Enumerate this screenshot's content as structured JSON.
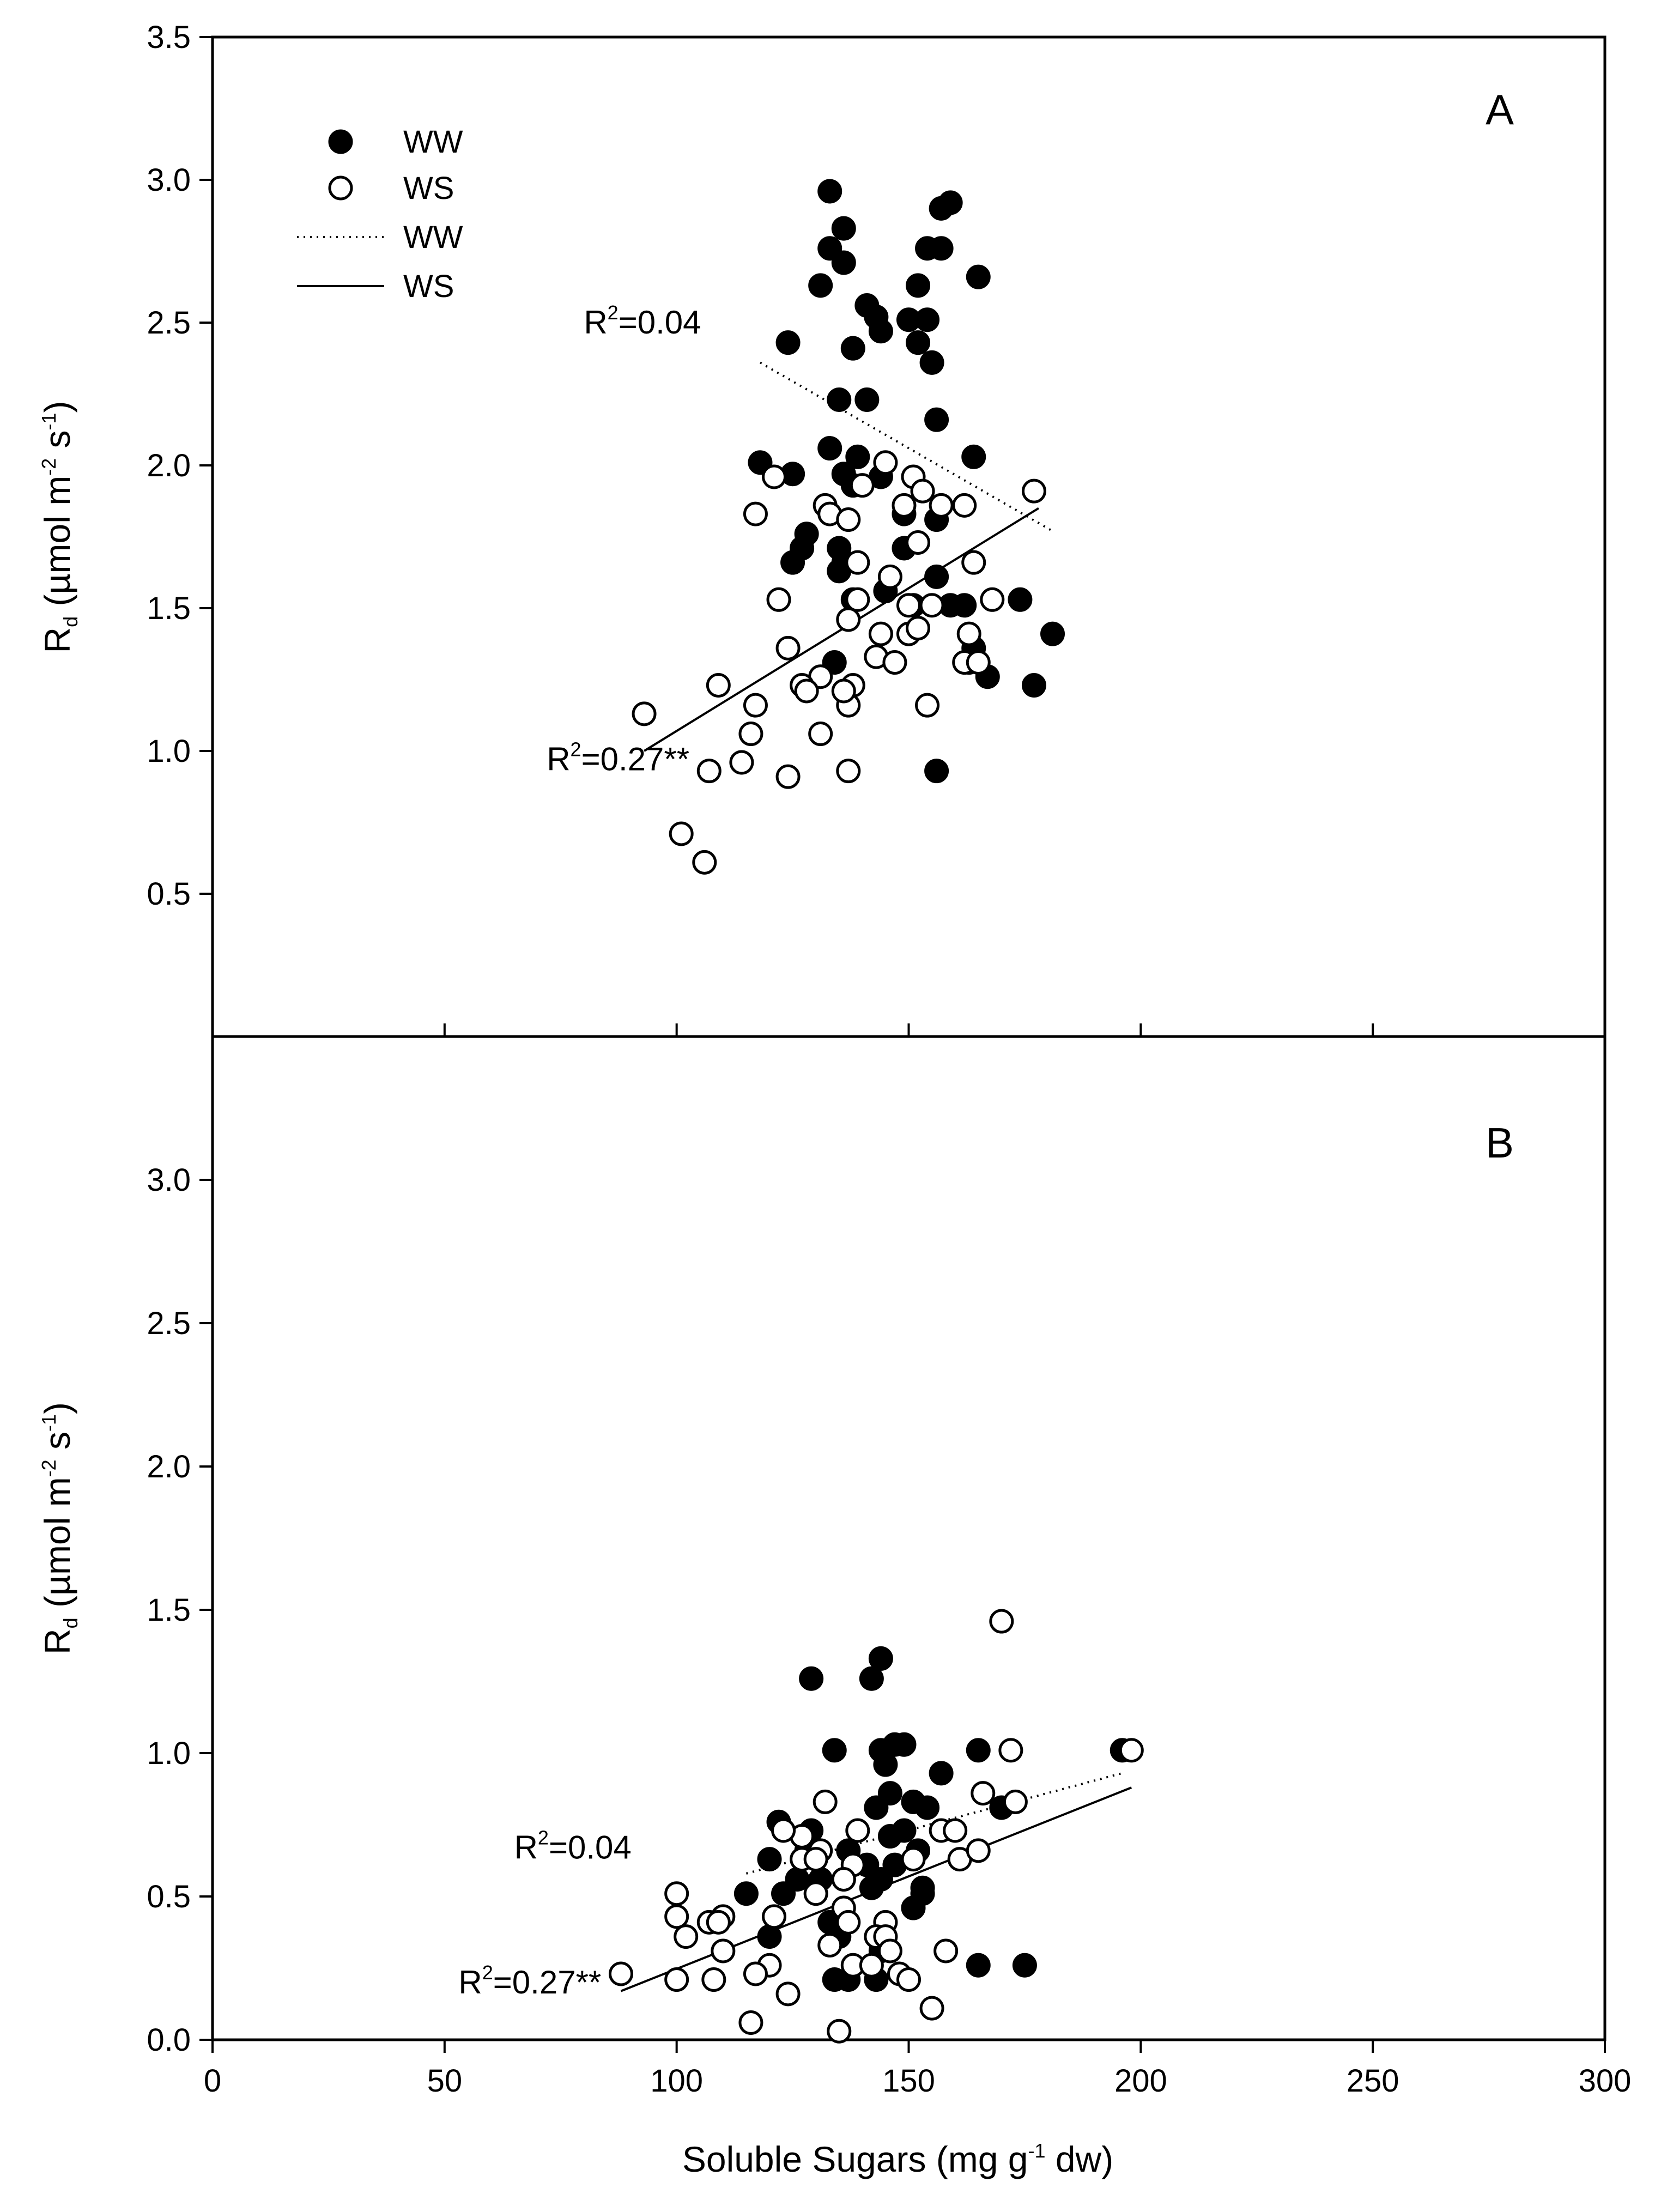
{
  "chart_data": [
    {
      "type": "scatter",
      "panel_label": "A",
      "xlim": [
        0,
        300
      ],
      "ylim": [
        0,
        3.5
      ],
      "ytick_labels": [
        "0.5",
        "1.0",
        "1.5",
        "2.0",
        "2.5",
        "3.0",
        "3.5"
      ],
      "ylabel": {
        "main": "R",
        "sub": "d",
        "units_prefix": " (µmol m",
        "sup1": "-2",
        "units_mid": " s",
        "sup2": "-1",
        "units_suffix": ")"
      },
      "legend": {
        "entries": [
          {
            "label": "WW",
            "kind": "filled-marker"
          },
          {
            "label": "WS",
            "kind": "open-marker"
          },
          {
            "label": "WW",
            "kind": "dotted-line"
          },
          {
            "label": "WS",
            "kind": "solid-line"
          }
        ]
      },
      "annotations": [
        {
          "prefix": "R",
          "sup": "2",
          "suffix": "=0.04",
          "x": 80,
          "y": 2.5
        },
        {
          "prefix": "R",
          "sup": "2",
          "suffix": "=0.27**",
          "x": 72,
          "y": 0.97
        }
      ],
      "series": [
        {
          "name": "WW",
          "marker": "filled",
          "points": [
            [
              133,
              2.96
            ],
            [
              136,
              2.83
            ],
            [
              159,
              2.92
            ],
            [
              157,
              2.9
            ],
            [
              133,
              2.76
            ],
            [
              154,
              2.76
            ],
            [
              157,
              2.76
            ],
            [
              136,
              2.71
            ],
            [
              131,
              2.63
            ],
            [
              152,
              2.63
            ],
            [
              165,
              2.66
            ],
            [
              141,
              2.56
            ],
            [
              143,
              2.52
            ],
            [
              150,
              2.51
            ],
            [
              154,
              2.51
            ],
            [
              144,
              2.47
            ],
            [
              152,
              2.43
            ],
            [
              124,
              2.43
            ],
            [
              138,
              2.41
            ],
            [
              155,
              2.36
            ],
            [
              135,
              2.23
            ],
            [
              141,
              2.23
            ],
            [
              156,
              2.16
            ],
            [
              118,
              2.01
            ],
            [
              125,
              1.97
            ],
            [
              133,
              2.06
            ],
            [
              139,
              2.03
            ],
            [
              164,
              2.03
            ],
            [
              136,
              1.97
            ],
            [
              144,
              1.96
            ],
            [
              138,
              1.93
            ],
            [
              149,
              1.83
            ],
            [
              156,
              1.81
            ],
            [
              128,
              1.76
            ],
            [
              135,
              1.71
            ],
            [
              127,
              1.71
            ],
            [
              149,
              1.71
            ],
            [
              125,
              1.66
            ],
            [
              136,
              1.66
            ],
            [
              135,
              1.63
            ],
            [
              145,
              1.56
            ],
            [
              156,
              1.61
            ],
            [
              138,
              1.53
            ],
            [
              151,
              1.51
            ],
            [
              159,
              1.51
            ],
            [
              162,
              1.51
            ],
            [
              174,
              1.53
            ],
            [
              181,
              1.41
            ],
            [
              163,
              1.31
            ],
            [
              164,
              1.36
            ],
            [
              134,
              1.31
            ],
            [
              167,
              1.26
            ],
            [
              177,
              1.23
            ],
            [
              156,
              0.93
            ]
          ]
        },
        {
          "name": "WS",
          "marker": "open",
          "points": [
            [
              177,
              1.91
            ],
            [
              145,
              2.01
            ],
            [
              151,
              1.96
            ],
            [
              121,
              1.96
            ],
            [
              153,
              1.91
            ],
            [
              140,
              1.93
            ],
            [
              162,
              1.86
            ],
            [
              132,
              1.86
            ],
            [
              157,
              1.86
            ],
            [
              133,
              1.83
            ],
            [
              149,
              1.86
            ],
            [
              137,
              1.81
            ],
            [
              117,
              1.83
            ],
            [
              152,
              1.73
            ],
            [
              139,
              1.66
            ],
            [
              164,
              1.66
            ],
            [
              146,
              1.61
            ],
            [
              122,
              1.53
            ],
            [
              139,
              1.53
            ],
            [
              168,
              1.53
            ],
            [
              150,
              1.51
            ],
            [
              155,
              1.51
            ],
            [
              137,
              1.46
            ],
            [
              150,
              1.41
            ],
            [
              144,
              1.41
            ],
            [
              152,
              1.43
            ],
            [
              163,
              1.41
            ],
            [
              124,
              1.36
            ],
            [
              143,
              1.33
            ],
            [
              147,
              1.31
            ],
            [
              162,
              1.31
            ],
            [
              165,
              1.31
            ],
            [
              131,
              1.26
            ],
            [
              138,
              1.23
            ],
            [
              127,
              1.23
            ],
            [
              128,
              1.21
            ],
            [
              109,
              1.23
            ],
            [
              117,
              1.16
            ],
            [
              137,
              1.16
            ],
            [
              154,
              1.16
            ],
            [
              93,
              1.13
            ],
            [
              116,
              1.06
            ],
            [
              131,
              1.06
            ],
            [
              114,
              0.96
            ],
            [
              107,
              0.93
            ],
            [
              124,
              0.91
            ],
            [
              137,
              0.93
            ],
            [
              101,
              0.71
            ],
            [
              106,
              0.61
            ],
            [
              136,
              1.21
            ]
          ]
        }
      ],
      "fits": [
        {
          "name": "WW",
          "style": "dotted",
          "x": [
            118,
            181
          ],
          "y": [
            2.36,
            1.77
          ]
        },
        {
          "name": "WS",
          "style": "solid",
          "x": [
            93,
            178
          ],
          "y": [
            1.0,
            1.85
          ]
        }
      ]
    },
    {
      "type": "scatter",
      "panel_label": "B",
      "xlim": [
        0,
        300
      ],
      "ylim": [
        0,
        3.5
      ],
      "xtick_labels": [
        "0",
        "50",
        "100",
        "150",
        "200",
        "250",
        "300"
      ],
      "ytick_labels": [
        "0.0",
        "0.5",
        "1.0",
        "1.5",
        "2.0",
        "2.5",
        "3.0"
      ],
      "xlabel": {
        "prefix": "Soluble Sugars (mg g",
        "sup": "-1",
        "suffix": " dw)"
      },
      "ylabel": {
        "main": "R",
        "sub": "d",
        "units_prefix": " (µmol m",
        "sup1": "-2",
        "units_mid": " s",
        "sup2": "-1",
        "units_suffix": ")"
      },
      "annotations": [
        {
          "prefix": "R",
          "sup": "2",
          "suffix": "=0.04",
          "x": 65,
          "y": 0.67
        },
        {
          "prefix": "R",
          "sup": "2",
          "suffix": "=0.27**",
          "x": 53,
          "y": 0.2
        }
      ],
      "series": [
        {
          "name": "WW",
          "marker": "filled",
          "points": [
            [
              144,
              1.33
            ],
            [
              129,
              1.26
            ],
            [
              142,
              1.26
            ],
            [
              134,
              1.01
            ],
            [
              144,
              1.01
            ],
            [
              147,
              1.03
            ],
            [
              149,
              1.03
            ],
            [
              165,
              1.01
            ],
            [
              145,
              0.96
            ],
            [
              157,
              0.93
            ],
            [
              146,
              0.86
            ],
            [
              151,
              0.83
            ],
            [
              170,
              0.81
            ],
            [
              143,
              0.81
            ],
            [
              122,
              0.76
            ],
            [
              154,
              0.81
            ],
            [
              129,
              0.73
            ],
            [
              137,
              0.66
            ],
            [
              146,
              0.71
            ],
            [
              149,
              0.73
            ],
            [
              120,
              0.63
            ],
            [
              128,
              0.66
            ],
            [
              141,
              0.61
            ],
            [
              144,
              0.56
            ],
            [
              147,
              0.61
            ],
            [
              152,
              0.66
            ],
            [
              126,
              0.56
            ],
            [
              131,
              0.56
            ],
            [
              136,
              0.56
            ],
            [
              153,
              0.53
            ],
            [
              115,
              0.51
            ],
            [
              123,
              0.51
            ],
            [
              142,
              0.53
            ],
            [
              151,
              0.46
            ],
            [
              133,
              0.41
            ],
            [
              120,
              0.36
            ],
            [
              135,
              0.36
            ],
            [
              144,
              0.31
            ],
            [
              153,
              0.51
            ],
            [
              134,
              0.21
            ],
            [
              137,
              0.21
            ],
            [
              143,
              0.21
            ],
            [
              165,
              0.26
            ],
            [
              175,
              0.26
            ],
            [
              196,
              1.01
            ]
          ]
        },
        {
          "name": "WS",
          "marker": "open",
          "points": [
            [
              170,
              1.46
            ],
            [
              172,
              1.01
            ],
            [
              198,
              1.01
            ],
            [
              166,
              0.86
            ],
            [
              173,
              0.83
            ],
            [
              132,
              0.83
            ],
            [
              157,
              0.73
            ],
            [
              139,
              0.73
            ],
            [
              127,
              0.71
            ],
            [
              160,
              0.73
            ],
            [
              123,
              0.73
            ],
            [
              131,
              0.66
            ],
            [
              127,
              0.63
            ],
            [
              130,
              0.63
            ],
            [
              151,
              0.63
            ],
            [
              161,
              0.63
            ],
            [
              165,
              0.66
            ],
            [
              138,
              0.61
            ],
            [
              136,
              0.56
            ],
            [
              121,
              0.43
            ],
            [
              130,
              0.51
            ],
            [
              100,
              0.51
            ],
            [
              100,
              0.43
            ],
            [
              110,
              0.43
            ],
            [
              107,
              0.41
            ],
            [
              109,
              0.41
            ],
            [
              136,
              0.46
            ],
            [
              102,
              0.36
            ],
            [
              110,
              0.31
            ],
            [
              133,
              0.33
            ],
            [
              137,
              0.41
            ],
            [
              145,
              0.41
            ],
            [
              143,
              0.36
            ],
            [
              145,
              0.36
            ],
            [
              146,
              0.31
            ],
            [
              158,
              0.31
            ],
            [
              120,
              0.26
            ],
            [
              138,
              0.26
            ],
            [
              142,
              0.26
            ],
            [
              148,
              0.23
            ],
            [
              117,
              0.23
            ],
            [
              88,
              0.23
            ],
            [
              100,
              0.21
            ],
            [
              108,
              0.21
            ],
            [
              150,
              0.21
            ],
            [
              124,
              0.16
            ],
            [
              155,
              0.11
            ],
            [
              116,
              0.06
            ],
            [
              135,
              0.03
            ]
          ]
        }
      ],
      "fits": [
        {
          "name": "WW",
          "style": "dotted",
          "x": [
            115,
            196
          ],
          "y": [
            0.58,
            0.93
          ]
        },
        {
          "name": "WS",
          "style": "solid",
          "x": [
            88,
            198
          ],
          "y": [
            0.17,
            0.88
          ]
        }
      ]
    }
  ]
}
